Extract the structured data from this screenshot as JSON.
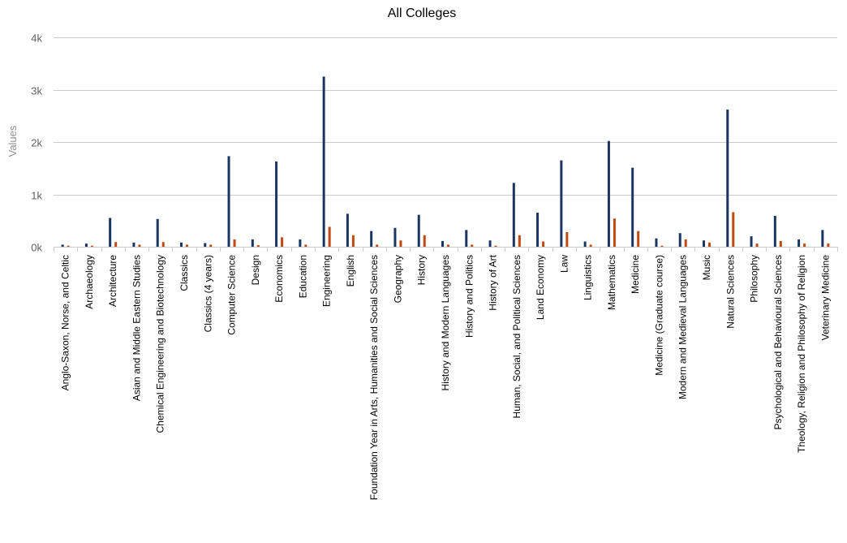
{
  "chart_data": {
    "type": "bar",
    "title": "All Colleges",
    "ylabel": "Values",
    "xlabel": "",
    "ylim": [
      0,
      4000
    ],
    "yticks": [
      {
        "value": 0,
        "label": "0k"
      },
      {
        "value": 1000,
        "label": "1k"
      },
      {
        "value": 2000,
        "label": "2k"
      },
      {
        "value": 3000,
        "label": "3k"
      },
      {
        "value": 4000,
        "label": "4k"
      }
    ],
    "grid": true,
    "legend": "none",
    "categories": [
      "Anglo-Saxon, Norse, and Celtic",
      "Archaeology",
      "Architecture",
      "Asian and Middle Eastern Studies",
      "Chemical Engineering and Biotechnology",
      "Classics",
      "Classics (4 years)",
      "Computer Science",
      "Design",
      "Economics",
      "Education",
      "Engineering",
      "English",
      "Foundation Year in Arts, Humanities and Social Sciences",
      "Geography",
      "History",
      "History and Modern Languages",
      "History and Politics",
      "History of Art",
      "Human, Social, and Political Sciences",
      "Land Economy",
      "Law",
      "Linguistics",
      "Mathematics",
      "Medicine",
      "Medicine (Graduate course)",
      "Modern and Medieval Languages",
      "Music",
      "Natural Sciences",
      "Philosophy",
      "Psychological and Behavioural Sciences",
      "Theology, Religion and Philosophy of Religion",
      "Veterinary Medicine"
    ],
    "series": [
      {
        "color": "#1a3560",
        "values": [
          40,
          60,
          550,
          80,
          530,
          80,
          70,
          1730,
          140,
          1630,
          140,
          3250,
          630,
          300,
          360,
          610,
          110,
          320,
          120,
          1220,
          650,
          1650,
          100,
          2020,
          1510,
          160,
          260,
          120,
          2620,
          200,
          590,
          140,
          320
        ]
      },
      {
        "color": "#c04a12",
        "values": [
          20,
          20,
          90,
          40,
          90,
          40,
          40,
          140,
          30,
          180,
          40,
          380,
          220,
          40,
          120,
          220,
          40,
          40,
          20,
          220,
          100,
          280,
          40,
          540,
          300,
          20,
          140,
          80,
          660,
          60,
          110,
          60,
          60
        ]
      }
    ]
  }
}
